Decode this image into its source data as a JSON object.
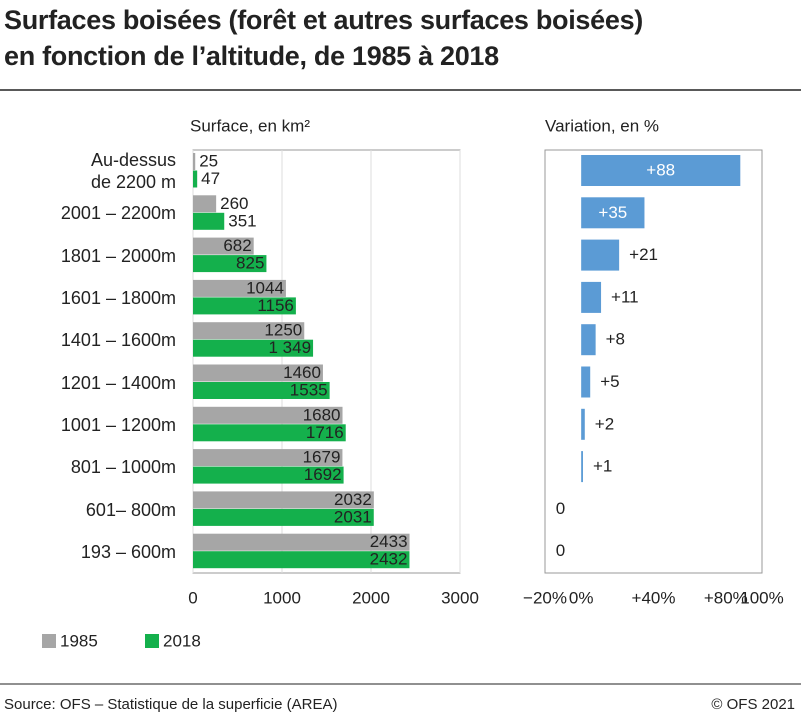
{
  "title": "Surfaces boisées (forêt et autres surfaces boisées)\nen fonction de l’altitude, de 1985 à 2018",
  "source": "Source: OFS – Statistique de la superficie (AREA)",
  "credit": "© OFS 2021",
  "chart_data": [
    {
      "type": "bar",
      "orientation": "horizontal",
      "axis_title": "Surface, en km²",
      "categories": [
        "Au-dessus\nde 2200 m",
        "2001 – 2200m",
        "1801 – 2000m",
        "1601 – 1800m",
        "1401 – 1600m",
        "1201 – 1400m",
        "1001 – 1200m",
        "801 – 1000m",
        "601– 800m",
        "193 – 600m"
      ],
      "series": [
        {
          "name": "1985",
          "color": "#a6a6a6",
          "values": [
            25,
            260,
            682,
            1044,
            1250,
            1460,
            1680,
            1679,
            2032,
            2433
          ]
        },
        {
          "name": "2018",
          "color": "#14b04c",
          "values": [
            47,
            351,
            825,
            1156,
            1349,
            1535,
            1716,
            1692,
            2031,
            2432
          ],
          "value_labels": [
            "47",
            "351",
            "825",
            "1156",
            "1 349",
            "1535",
            "1716",
            "1692",
            "2031",
            "2432"
          ]
        }
      ],
      "xlim": [
        0,
        3000
      ],
      "xticks": [
        0,
        1000,
        2000,
        3000
      ],
      "grid": true,
      "legend": "bottom-left"
    },
    {
      "type": "bar",
      "orientation": "horizontal",
      "axis_title": "Variation, en %",
      "color": "#5b9bd5",
      "values": [
        88,
        35,
        21,
        11,
        8,
        5,
        2,
        1,
        0,
        0
      ],
      "value_labels": [
        "+88",
        "+35",
        "+21",
        "+11",
        "+8",
        "+5",
        "+2",
        "+1",
        "0",
        "0"
      ],
      "xlim": [
        -20,
        100
      ],
      "xticks": [
        {
          "value": -20,
          "label": "−20%"
        },
        {
          "value": 0,
          "label": "0%"
        },
        {
          "value": 40,
          "label": "+40%"
        },
        {
          "value": 80,
          "label": "+80%"
        },
        {
          "value": 100,
          "label": "100%"
        }
      ],
      "grid": false
    }
  ]
}
